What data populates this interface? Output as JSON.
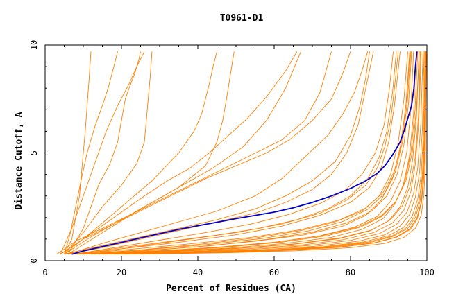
{
  "chart_data": {
    "type": "line",
    "title": "T0961-D1",
    "xlabel": "Percent of Residues (CA)",
    "ylabel": "Distance Cutoff, A",
    "xlim": [
      0,
      100
    ],
    "ylim": [
      0,
      10
    ],
    "x_ticks": [
      0,
      20,
      40,
      60,
      80,
      100
    ],
    "y_ticks": [
      0,
      5,
      10
    ],
    "grid": false,
    "legend": "none",
    "colors": {
      "highlight": "#0000cc",
      "others": "#ff8000",
      "axis": "#000000"
    },
    "highlight_series": {
      "x": [
        7,
        10,
        15,
        20,
        25,
        30,
        35,
        40,
        45,
        50,
        55,
        60,
        65,
        70,
        75,
        80,
        84,
        87,
        89,
        91,
        93,
        94,
        95,
        96,
        96.6,
        97,
        97.4
      ],
      "y": [
        0.3,
        0.45,
        0.65,
        0.85,
        1.05,
        1.25,
        1.45,
        1.62,
        1.78,
        1.95,
        2.1,
        2.25,
        2.45,
        2.7,
        3.0,
        3.35,
        3.7,
        4.05,
        4.4,
        4.9,
        5.5,
        6.0,
        6.6,
        7.2,
        8.0,
        9.0,
        9.7
      ]
    },
    "series": [
      {
        "x": [
          5,
          7,
          8,
          9,
          9.5,
          10,
          10.5,
          11,
          11.5,
          12
        ],
        "y": [
          0.3,
          1.0,
          2.0,
          3.0,
          4.0,
          5.0,
          6.0,
          7.2,
          8.4,
          9.7
        ]
      },
      {
        "x": [
          5,
          6.5,
          8,
          9.5,
          11,
          13,
          15,
          16.5,
          18,
          19
        ],
        "y": [
          0.3,
          1.2,
          2.5,
          3.8,
          5.0,
          6.2,
          7.2,
          8.0,
          9.0,
          9.7
        ]
      },
      {
        "x": [
          4,
          7,
          10,
          13,
          16,
          19,
          22,
          24,
          26
        ],
        "y": [
          0.3,
          1.5,
          3.0,
          4.5,
          6.0,
          7.2,
          8.2,
          9.0,
          9.7
        ]
      },
      {
        "x": [
          6,
          10,
          12,
          14,
          17,
          19,
          20,
          21,
          22,
          23.5,
          24.5,
          25
        ],
        "y": [
          0.3,
          1.5,
          2.5,
          3.5,
          4.5,
          5.5,
          6.5,
          7.5,
          8.0,
          8.7,
          9.3,
          9.7
        ]
      },
      {
        "x": [
          5,
          10,
          15,
          20,
          24,
          26,
          26.5,
          27,
          27.5,
          28
        ],
        "y": [
          0.3,
          1.3,
          2.5,
          3.5,
          4.5,
          5.5,
          6.5,
          7.5,
          8.5,
          9.7
        ]
      },
      {
        "x": [
          5,
          12,
          20,
          28,
          35,
          39,
          41,
          42,
          43,
          44,
          45
        ],
        "y": [
          0.3,
          1.3,
          2.5,
          3.7,
          5.0,
          6.0,
          6.8,
          7.5,
          8.2,
          9.0,
          9.7
        ]
      },
      {
        "x": [
          6,
          15,
          25,
          35,
          42,
          45,
          46.5,
          47.5,
          48.5,
          49.5
        ],
        "y": [
          0.3,
          1.3,
          2.4,
          3.4,
          4.4,
          5.5,
          6.5,
          7.5,
          8.6,
          9.7
        ]
      },
      {
        "x": [
          4,
          10,
          18,
          26,
          32,
          38,
          43,
          48,
          53,
          58,
          63,
          66
        ],
        "y": [
          0.3,
          1.0,
          2.0,
          3.0,
          3.7,
          4.3,
          5.0,
          5.8,
          6.6,
          7.6,
          8.8,
          9.7
        ]
      },
      {
        "x": [
          5,
          12,
          20,
          28,
          36,
          44,
          52,
          58,
          63,
          67
        ],
        "y": [
          0.3,
          1.1,
          1.9,
          2.7,
          3.5,
          4.3,
          5.3,
          6.5,
          8.0,
          9.7
        ]
      },
      {
        "x": [
          3,
          8,
          15,
          22,
          30,
          38,
          46,
          54,
          62,
          68,
          72,
          75
        ],
        "y": [
          0.3,
          0.9,
          1.5,
          2.1,
          2.8,
          3.5,
          4.2,
          4.9,
          5.6,
          6.5,
          7.8,
          9.7
        ]
      },
      {
        "x": [
          4,
          10,
          18,
          26,
          34,
          42,
          50,
          58,
          64,
          70,
          75,
          78,
          80
        ],
        "y": [
          0.3,
          1.0,
          1.7,
          2.4,
          3.1,
          3.8,
          4.4,
          5.0,
          5.6,
          6.5,
          7.5,
          8.7,
          9.7
        ]
      },
      {
        "x": [
          6,
          15,
          25,
          35,
          45,
          55,
          62,
          68,
          74,
          78,
          81,
          83,
          84.5
        ],
        "y": [
          0.3,
          0.8,
          1.3,
          1.8,
          2.3,
          3.0,
          3.8,
          4.8,
          5.8,
          6.8,
          7.8,
          8.8,
          9.7
        ]
      },
      {
        "x": [
          5,
          15,
          25,
          35,
          45,
          55,
          63,
          70,
          76,
          80,
          82.5,
          84,
          85
        ],
        "y": [
          0.3,
          0.7,
          1.1,
          1.5,
          1.9,
          2.4,
          3.0,
          3.7,
          4.6,
          5.8,
          7.2,
          8.5,
          9.7
        ]
      },
      {
        "x": [
          6,
          15,
          25,
          35,
          45,
          55,
          63,
          70,
          75,
          79,
          82,
          84,
          86
        ],
        "y": [
          0.3,
          0.6,
          1.0,
          1.4,
          1.8,
          2.2,
          2.7,
          3.3,
          4.0,
          5.0,
          6.3,
          8.0,
          9.7
        ]
      },
      {
        "x": [
          7,
          20,
          35,
          50,
          62,
          72,
          79,
          84,
          87,
          89,
          90.5,
          91.5,
          92.5
        ],
        "y": [
          0.3,
          0.6,
          0.95,
          1.3,
          1.7,
          2.2,
          2.8,
          3.5,
          4.3,
          5.3,
          6.5,
          8.0,
          9.7
        ]
      },
      {
        "x": [
          8,
          20,
          35,
          50,
          62,
          72,
          80,
          85,
          88,
          90,
          91.5,
          93
        ],
        "y": [
          0.3,
          0.55,
          0.85,
          1.2,
          1.6,
          2.1,
          2.7,
          3.4,
          4.3,
          5.5,
          7.2,
          9.7
        ]
      },
      {
        "x": [
          9,
          25,
          40,
          55,
          67,
          76,
          83,
          87.5,
          90.5,
          92.5,
          94,
          95
        ],
        "y": [
          0.3,
          0.5,
          0.75,
          1.05,
          1.4,
          1.8,
          2.3,
          3.0,
          4.0,
          5.5,
          7.5,
          9.7
        ]
      },
      {
        "x": [
          10,
          25,
          40,
          55,
          68,
          78,
          84,
          88,
          91,
          93,
          94.5,
          95.5
        ],
        "y": [
          0.3,
          0.45,
          0.65,
          0.9,
          1.2,
          1.6,
          2.1,
          2.8,
          3.8,
          5.2,
          7.2,
          9.7
        ]
      },
      {
        "x": [
          12,
          30,
          45,
          60,
          72,
          81,
          87,
          90.5,
          93,
          94.7,
          95.8,
          96.5
        ],
        "y": [
          0.3,
          0.45,
          0.62,
          0.85,
          1.15,
          1.55,
          2.05,
          2.75,
          3.7,
          5.0,
          7.0,
          9.7
        ]
      },
      {
        "x": [
          13,
          30,
          48,
          63,
          75,
          83,
          88.5,
          91.5,
          93.8,
          95.4,
          96.5,
          97.2
        ],
        "y": [
          0.3,
          0.42,
          0.58,
          0.8,
          1.08,
          1.45,
          1.95,
          2.6,
          3.5,
          4.8,
          6.8,
          9.7
        ]
      },
      {
        "x": [
          14,
          32,
          50,
          65,
          77,
          85,
          90,
          93,
          95,
          96.3,
          97.3,
          98
        ],
        "y": [
          0.3,
          0.42,
          0.56,
          0.76,
          1.02,
          1.38,
          1.85,
          2.5,
          3.4,
          4.7,
          6.7,
          9.7
        ]
      },
      {
        "x": [
          15,
          35,
          52,
          67,
          78,
          86,
          91,
          94,
          95.8,
          97,
          97.9,
          98.5
        ],
        "y": [
          0.3,
          0.4,
          0.54,
          0.72,
          0.97,
          1.3,
          1.75,
          2.35,
          3.2,
          4.5,
          6.5,
          9.7
        ]
      },
      {
        "x": [
          16,
          36,
          54,
          69,
          80,
          87.5,
          92,
          94.8,
          96.5,
          97.6,
          98.4,
          99
        ],
        "y": [
          0.3,
          0.4,
          0.52,
          0.7,
          0.94,
          1.25,
          1.68,
          2.25,
          3.1,
          4.3,
          6.3,
          9.7
        ]
      },
      {
        "x": [
          17,
          38,
          56,
          71,
          82,
          89,
          93,
          95.5,
          97,
          98.1,
          98.8,
          99.3
        ],
        "y": [
          0.3,
          0.39,
          0.5,
          0.67,
          0.9,
          1.2,
          1.6,
          2.15,
          2.95,
          4.1,
          6.0,
          9.7
        ]
      },
      {
        "x": [
          18,
          40,
          58,
          73,
          83.5,
          90,
          94,
          96.2,
          97.6,
          98.5,
          99.1,
          99.5
        ],
        "y": [
          0.3,
          0.38,
          0.49,
          0.65,
          0.87,
          1.16,
          1.55,
          2.08,
          2.85,
          4.0,
          5.9,
          9.7
        ]
      },
      {
        "x": [
          20,
          42,
          60,
          75,
          85,
          91,
          95,
          97,
          98.2,
          98.9,
          99.4,
          99.7
        ],
        "y": [
          0.3,
          0.38,
          0.48,
          0.63,
          0.84,
          1.12,
          1.5,
          2.0,
          2.75,
          3.9,
          5.8,
          9.7
        ]
      },
      {
        "x": [
          22,
          44,
          62,
          76.5,
          86,
          92,
          95.7,
          97.5,
          98.6,
          99.2,
          99.6,
          99.8
        ],
        "y": [
          0.3,
          0.37,
          0.47,
          0.61,
          0.81,
          1.08,
          1.45,
          1.95,
          2.7,
          3.8,
          5.7,
          9.7
        ]
      },
      {
        "x": [
          9,
          20,
          32,
          44,
          56,
          66,
          74,
          80,
          84.5,
          87.5,
          89.5,
          91,
          92
        ],
        "y": [
          0.3,
          0.55,
          0.85,
          1.15,
          1.5,
          1.9,
          2.4,
          3.0,
          3.8,
          4.8,
          6.0,
          7.8,
          9.7
        ]
      },
      {
        "x": [
          8,
          18,
          30,
          42,
          54,
          64,
          72,
          78.5,
          83,
          86.5,
          88.8,
          90.2,
          91.2
        ],
        "y": [
          0.3,
          0.6,
          0.95,
          1.3,
          1.7,
          2.15,
          2.65,
          3.25,
          4.0,
          5.0,
          6.3,
          8.0,
          9.7
        ]
      },
      {
        "x": [
          11,
          28,
          44,
          58,
          70,
          79,
          85.5,
          89.5,
          92.2,
          94,
          95.2,
          96
        ],
        "y": [
          0.3,
          0.48,
          0.7,
          0.98,
          1.32,
          1.75,
          2.3,
          3.0,
          4.0,
          5.4,
          7.3,
          9.7
        ]
      },
      {
        "x": [
          10,
          26,
          42,
          57,
          69,
          78,
          84.5,
          88.8,
          91.7,
          93.6,
          94.9,
          95.8
        ],
        "y": [
          0.3,
          0.5,
          0.74,
          1.03,
          1.38,
          1.82,
          2.38,
          3.1,
          4.1,
          5.5,
          7.4,
          9.7
        ]
      },
      {
        "x": [
          13,
          31,
          47,
          62,
          74,
          82.5,
          88.2,
          91.8,
          94.2,
          95.8,
          96.9,
          97.6
        ],
        "y": [
          0.3,
          0.44,
          0.62,
          0.86,
          1.16,
          1.55,
          2.05,
          2.72,
          3.65,
          5.0,
          7.0,
          9.7
        ]
      },
      {
        "x": [
          15,
          34,
          51,
          66,
          77.5,
          85.5,
          90.5,
          93.6,
          95.6,
          96.9,
          97.8,
          98.3
        ],
        "y": [
          0.3,
          0.42,
          0.58,
          0.79,
          1.06,
          1.42,
          1.9,
          2.55,
          3.45,
          4.75,
          6.7,
          9.7
        ]
      },
      {
        "x": [
          19,
          41,
          59,
          74,
          84.5,
          90.8,
          94.6,
          96.7,
          98,
          98.8,
          99.3,
          99.6
        ],
        "y": [
          0.3,
          0.38,
          0.49,
          0.64,
          0.86,
          1.14,
          1.52,
          2.05,
          2.82,
          3.95,
          5.85,
          9.7
        ]
      },
      {
        "x": [
          21,
          43,
          61,
          76,
          86,
          92,
          95.5,
          97.4,
          98.5,
          99.1,
          99.5,
          99.8
        ],
        "y": [
          0.3,
          0.37,
          0.47,
          0.62,
          0.82,
          1.1,
          1.47,
          1.98,
          2.72,
          3.85,
          5.75,
          9.7
        ]
      },
      {
        "x": [
          25,
          48,
          66,
          80,
          89,
          94,
          97,
          98.5,
          99.2,
          99.6,
          99.85
        ],
        "y": [
          0.3,
          0.37,
          0.46,
          0.6,
          0.8,
          1.08,
          1.5,
          2.1,
          3.0,
          4.5,
          9.7
        ]
      },
      {
        "x": [
          12,
          29,
          46,
          61,
          73,
          82,
          88,
          91.9,
          94.5,
          96.2,
          97.3,
          98
        ],
        "y": [
          0.3,
          0.45,
          0.63,
          0.87,
          1.17,
          1.56,
          2.07,
          2.75,
          3.7,
          5.05,
          7.1,
          9.7
        ]
      },
      {
        "x": [
          8,
          22,
          38,
          54,
          67,
          77,
          84,
          88.5,
          91.5,
          93.4,
          94.7,
          95.6
        ],
        "y": [
          0.3,
          0.52,
          0.78,
          1.08,
          1.44,
          1.88,
          2.44,
          3.15,
          4.15,
          5.55,
          7.5,
          9.7
        ]
      }
    ]
  }
}
